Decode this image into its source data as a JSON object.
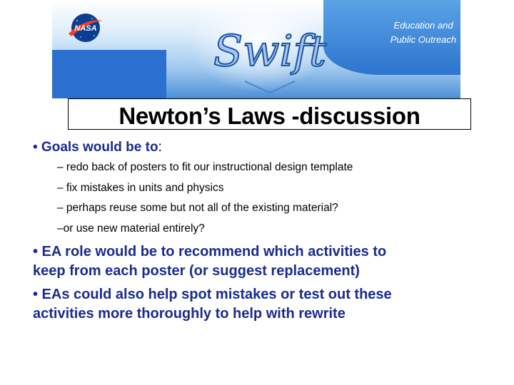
{
  "header": {
    "logo_text": "NASA",
    "wordmark": "Swift",
    "epo_line1": "Education and",
    "epo_line2": "Public Outreach"
  },
  "slide": {
    "title": "Newton’s Laws -discussion",
    "goals_label": "• Goals would be to",
    "goals_colon": ":",
    "goals_items": [
      "– redo back of posters to fit our instructional design template",
      "– fix mistakes in units and physics",
      "– perhaps reuse some but not all of the existing material?",
      "–or use new material entirely?"
    ],
    "bullet2_line1": "• EA role would be to recommend which activities to",
    "bullet2_line2": "keep from each poster (or suggest replacement)",
    "bullet3_line1": "• EAs could also help spot mistakes or test out these",
    "bullet3_line2": "activities more thoroughly to help with rewrite"
  },
  "colors": {
    "bullet_blue": "#1a2b8f",
    "banner_blue": "#2d74cf",
    "nasa_blue": "#0b3d91",
    "nasa_red": "#fc3d21"
  },
  "icons": {
    "logo": "nasa-meatball-logo",
    "wordmark": "swift-wordmark"
  }
}
